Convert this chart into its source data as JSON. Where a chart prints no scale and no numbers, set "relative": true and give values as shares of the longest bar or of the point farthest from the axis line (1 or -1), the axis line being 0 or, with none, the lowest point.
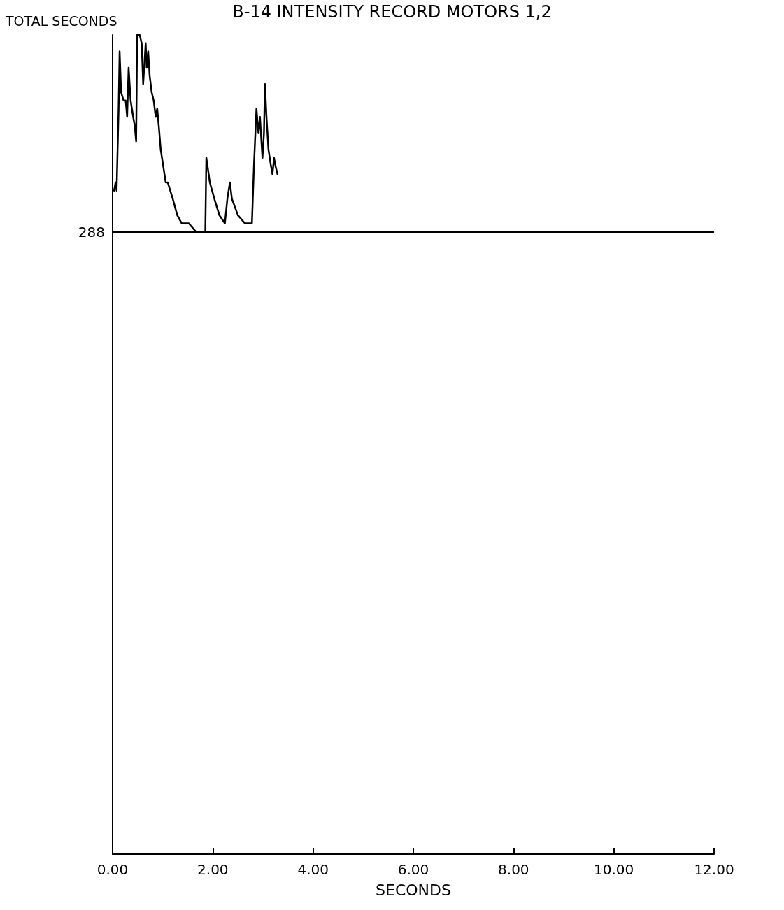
{
  "chart_data": {
    "type": "line",
    "title": "B-14 INTENSITY RECORD MOTORS 1,2",
    "xlabel": "SECONDS",
    "ylabel": "TOTAL SECONDS",
    "relative": true,
    "tick_labels": "x",
    "grid": false,
    "marker": "none",
    "annotations": [
      "288"
    ],
    "line_style": "solid",
    "xlim": [
      0,
      12
    ],
    "xticks": [
      {
        "value": 0,
        "label": "0.00"
      },
      {
        "value": 2,
        "label": "2.00"
      },
      {
        "value": 4,
        "label": "4.00"
      },
      {
        "value": 6,
        "label": "6.00"
      },
      {
        "value": 8,
        "label": "8.00"
      },
      {
        "value": 10,
        "label": "10.00"
      },
      {
        "value": 12,
        "label": "12.00"
      }
    ],
    "ref_lines": [
      {
        "axis": "y",
        "value": 0.758
      }
    ],
    "series": [
      {
        "color": "#000000",
        "x": [
          0.03,
          0.06,
          0.08,
          0.12,
          0.14,
          0.17,
          0.22,
          0.26,
          0.29,
          0.32,
          0.36,
          0.41,
          0.44,
          0.47,
          0.49,
          0.54,
          0.58,
          0.61,
          0.64,
          0.66,
          0.68,
          0.71,
          0.74,
          0.78,
          0.82,
          0.86,
          0.89,
          0.92,
          0.96,
          1.01,
          1.06,
          1.1,
          1.2,
          1.29,
          1.38,
          1.52,
          1.66,
          1.85,
          1.87,
          1.94,
          2.03,
          2.13,
          2.24,
          2.29,
          2.34,
          2.38,
          2.5,
          2.64,
          2.78,
          2.82,
          2.87,
          2.91,
          2.94,
          2.99,
          3.02,
          3.04,
          3.07,
          3.11,
          3.16,
          3.19,
          3.22,
          3.25,
          3.29
        ],
        "values": [
          0.81,
          0.82,
          0.81,
          0.91,
          0.98,
          0.93,
          0.92,
          0.92,
          0.9,
          0.96,
          0.92,
          0.9,
          0.89,
          0.87,
          1.0,
          1.0,
          0.99,
          0.94,
          0.97,
          0.99,
          0.96,
          0.98,
          0.95,
          0.93,
          0.92,
          0.9,
          0.91,
          0.89,
          0.86,
          0.84,
          0.82,
          0.82,
          0.8,
          0.78,
          0.77,
          0.77,
          0.76,
          0.76,
          0.85,
          0.82,
          0.8,
          0.78,
          0.77,
          0.8,
          0.82,
          0.8,
          0.78,
          0.77,
          0.77,
          0.84,
          0.91,
          0.88,
          0.9,
          0.85,
          0.88,
          0.94,
          0.9,
          0.86,
          0.84,
          0.83,
          0.85,
          0.84,
          0.83
        ]
      }
    ]
  }
}
